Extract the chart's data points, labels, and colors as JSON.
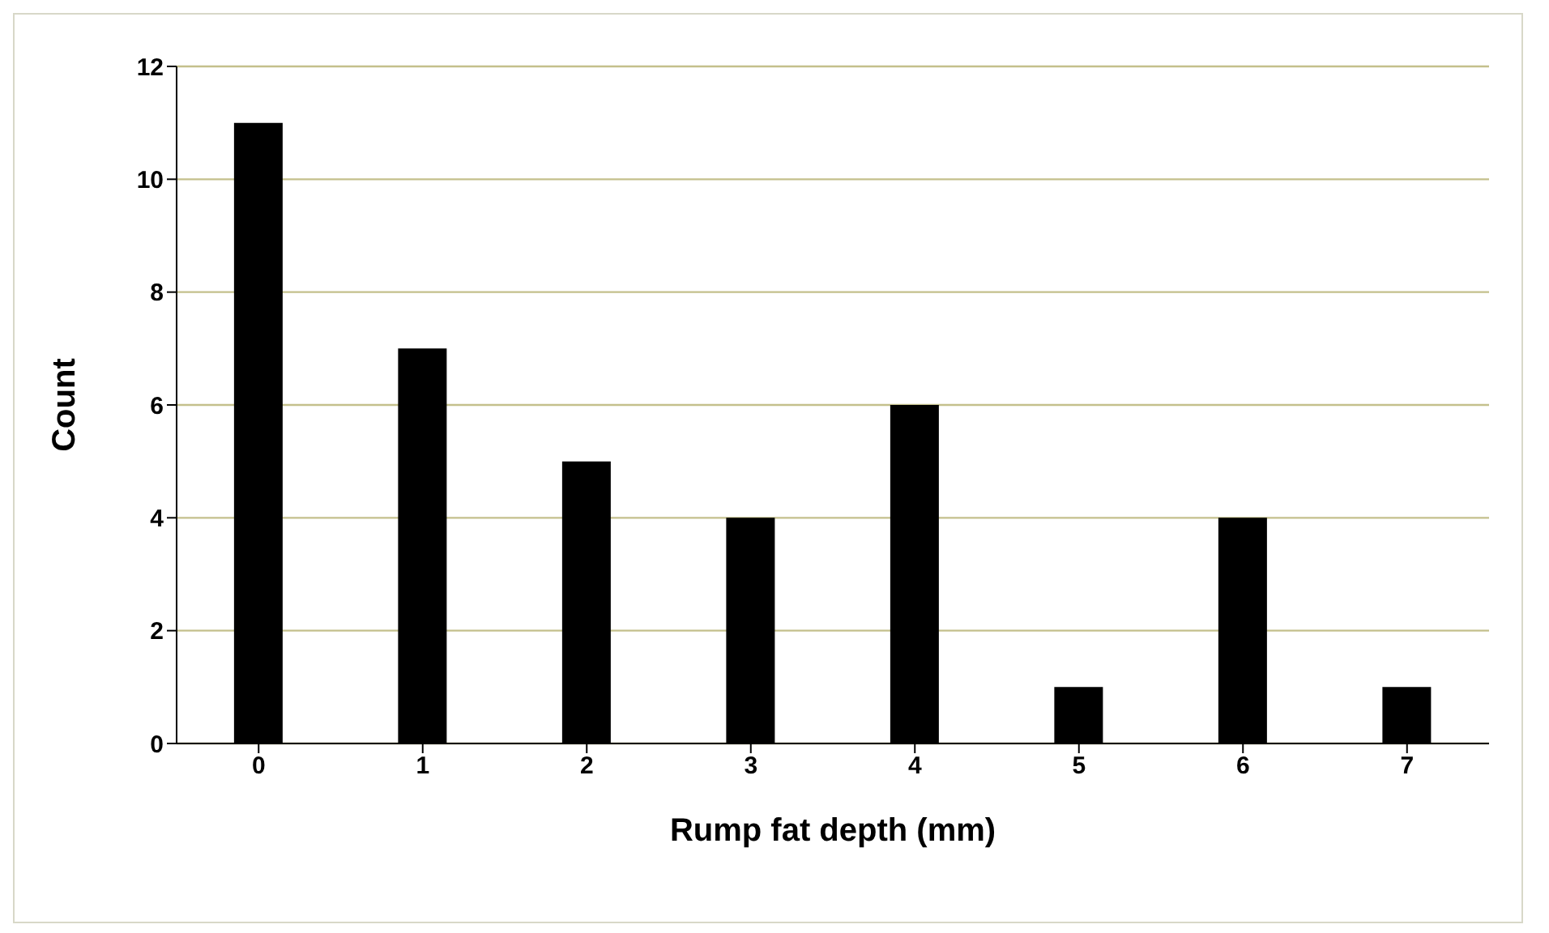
{
  "chart_data": {
    "type": "bar",
    "xlabel": "Rump fat depth (mm)",
    "ylabel": "Count",
    "categories": [
      "0",
      "1",
      "2",
      "3",
      "4",
      "5",
      "6",
      "7"
    ],
    "values": [
      11,
      7,
      5,
      4,
      6,
      1,
      4,
      1
    ],
    "color": "#000000",
    "ylim": [
      0,
      12
    ],
    "yticks": [
      0,
      2,
      4,
      6,
      8,
      10,
      12
    ],
    "grid": "y",
    "legend": false
  }
}
